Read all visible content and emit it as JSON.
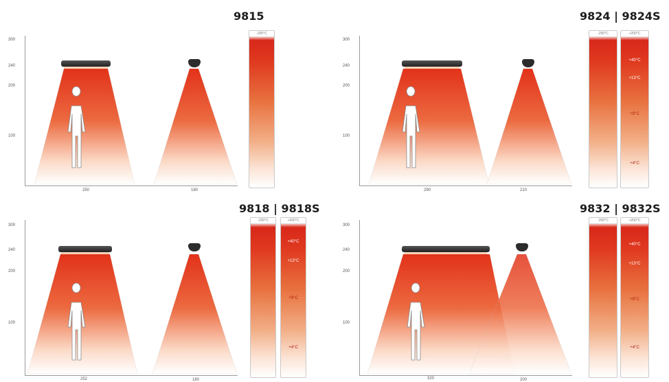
{
  "panels": [
    {
      "title": "9815",
      "y_ticks": [
        "300",
        "240",
        "200",
        "100"
      ],
      "x_labels": [
        "250",
        "160"
      ],
      "columns": [
        {
          "header": "-200°C",
          "labels": [
            "",
            "",
            "",
            ""
          ]
        }
      ]
    },
    {
      "title": "9824 | 9824S",
      "y_ticks": [
        "300",
        "240",
        "200",
        "100"
      ],
      "x_labels": [
        "290",
        "210"
      ],
      "columns": [
        {
          "header": "-200°C",
          "labels": [
            "",
            "",
            "",
            ""
          ]
        },
        {
          "header": "+200°C",
          "labels": [
            "+40°C",
            "+13°C",
            "+8°C",
            "+4°C"
          ]
        }
      ]
    },
    {
      "title": "9818 | 9818S",
      "y_ticks": [
        "300",
        "240",
        "200",
        "100"
      ],
      "x_labels": [
        "252",
        "180"
      ],
      "columns": [
        {
          "header": "-200°C",
          "labels": [
            "",
            "",
            "",
            ""
          ]
        },
        {
          "header": "+200°C",
          "labels": [
            "+40°C",
            "+13°C",
            "+8°C",
            "+4°C"
          ]
        }
      ]
    },
    {
      "title": "9832 | 9832S",
      "y_ticks": [
        "300",
        "240",
        "200",
        "100"
      ],
      "x_labels": [
        "320",
        "200"
      ],
      "columns": [
        {
          "header": "-200°C",
          "labels": [
            "",
            "",
            "",
            ""
          ]
        },
        {
          "header": "+200°C",
          "labels": [
            "+40°C",
            "+13°C",
            "+8°C",
            "+4°C"
          ]
        }
      ]
    }
  ]
}
